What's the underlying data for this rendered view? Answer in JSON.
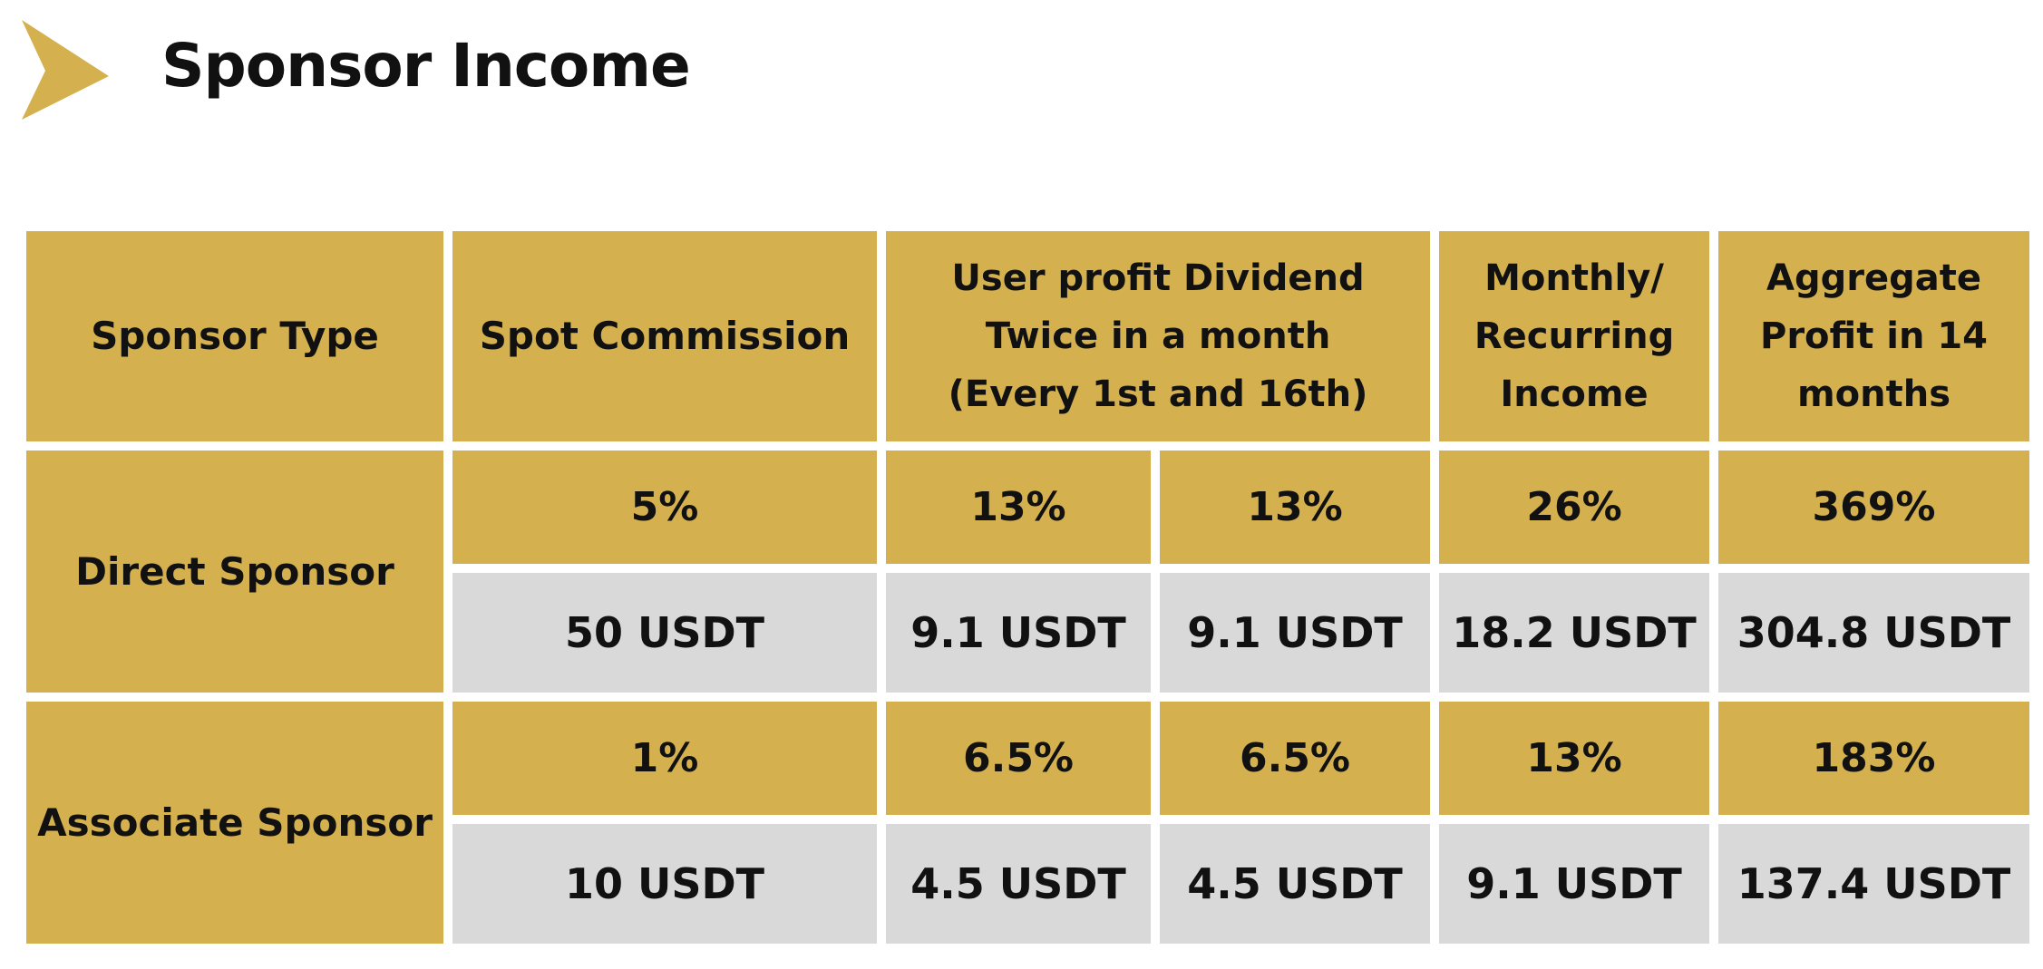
{
  "header": {
    "title": "Sponsor Income",
    "icon": "chevron-right-icon",
    "accent_color": "#d4b04f"
  },
  "table": {
    "columns": [
      {
        "label_lines": [
          "Sponsor Type"
        ]
      },
      {
        "label_lines": [
          "Spot Commission"
        ]
      },
      {
        "label_lines": [
          "User profit Dividend",
          "Twice in a month",
          "(Every 1st and 16th)"
        ]
      },
      {
        "label_lines": [
          "Monthly/",
          "Recurring",
          "Income"
        ]
      },
      {
        "label_lines": [
          "Aggregate",
          "Profit in 14",
          "months"
        ]
      }
    ],
    "rows": [
      {
        "type": "Direct Sponsor",
        "percent": {
          "spot": "5%",
          "dividend_1": "13%",
          "dividend_2": "13%",
          "monthly": "26%",
          "aggregate": "369%"
        },
        "amount": {
          "spot": "50 USDT",
          "dividend_1": "9.1 USDT",
          "dividend_2": "9.1 USDT",
          "monthly": "18.2 USDT",
          "aggregate": "304.8 USDT"
        }
      },
      {
        "type": "Associate Sponsor",
        "percent": {
          "spot": "1%",
          "dividend_1": "6.5%",
          "dividend_2": "6.5%",
          "monthly": "13%",
          "aggregate": "183%"
        },
        "amount": {
          "spot": "10 USDT",
          "dividend_1": "4.5 USDT",
          "dividend_2": "4.5 USDT",
          "monthly": "9.1 USDT",
          "aggregate": "137.4 USDT"
        }
      }
    ]
  }
}
